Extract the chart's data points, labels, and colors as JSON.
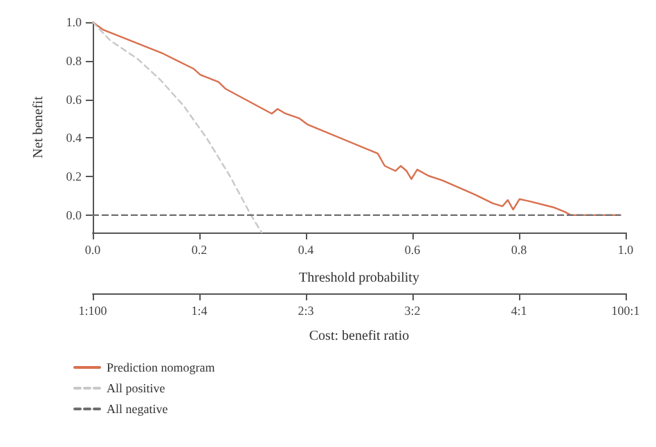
{
  "chart_data": {
    "type": "line",
    "xlabel": "Threshold probability",
    "ylabel": "Net benefit",
    "x2label": "Cost: benefit ratio",
    "xlim": [
      0,
      1
    ],
    "xticks": [
      {
        "value": 0,
        "label": "0.0"
      },
      0.2,
      0.4,
      0.6,
      0.8,
      {
        "value": 1,
        "label": "1.0"
      }
    ],
    "annotations": [
      "1:100",
      "1:4",
      "2:3",
      "3:2",
      "4:1",
      "100:1"
    ],
    "ylim": [
      -0.09,
      1
    ],
    "yticks": [
      {
        "value": 0,
        "label": "0.0"
      },
      0.2,
      0.4,
      0.6,
      0.8,
      {
        "value": 1,
        "label": "1.0"
      }
    ],
    "grid": false,
    "legend": "bottom left",
    "marker": "none",
    "series": [
      {
        "name": "Prediction nomogram",
        "color": "#d9704f",
        "line_style": "solid",
        "x": [
          0,
          0.02,
          0.132,
          0.189,
          0.202,
          0.236,
          0.249,
          0.336,
          0.347,
          0.362,
          0.388,
          0.403,
          0.535,
          0.548,
          0.568,
          0.578,
          0.589,
          0.598,
          0.609,
          0.63,
          0.656,
          0.717,
          0.751,
          0.769,
          0.779,
          0.789,
          0.801,
          0.821,
          0.864,
          0.886,
          0.897,
          0.99
        ],
        "values": [
          1,
          0.96,
          0.837,
          0.759,
          0.727,
          0.69,
          0.655,
          0.526,
          0.55,
          0.526,
          0.501,
          0.47,
          0.319,
          0.255,
          0.229,
          0.255,
          0.229,
          0.187,
          0.236,
          0.204,
          0.18,
          0.107,
          0.061,
          0.046,
          0.078,
          0.029,
          0.083,
          0.071,
          0.041,
          0.017,
          0,
          0
        ]
      },
      {
        "name": "All positive",
        "color": "#c8c8c8",
        "line_style": "dashed",
        "x": [
          0,
          0.033,
          0.085,
          0.128,
          0.171,
          0.215,
          0.258,
          0.297,
          0.317
        ],
        "values": [
          1,
          0.905,
          0.808,
          0.698,
          0.565,
          0.394,
          0.2,
          0,
          -0.09
        ]
      },
      {
        "name": "All negative",
        "color": "#6e6e6e",
        "line_style": "dashed",
        "x": [
          0,
          0.99
        ],
        "values": [
          0,
          0
        ]
      }
    ]
  }
}
